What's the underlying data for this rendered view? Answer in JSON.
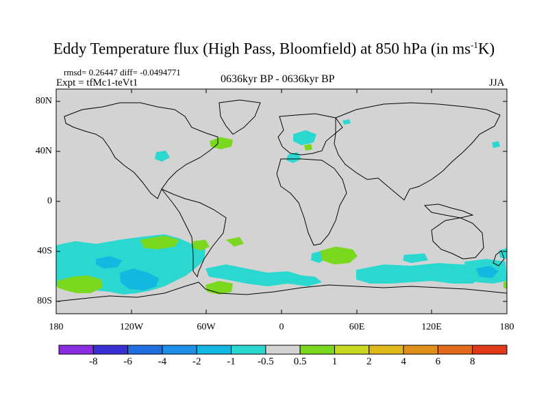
{
  "title": {
    "main": "Eddy Temperature flux (High Pass, Bloomfield) at 850 hPa (in ms",
    "sup": "-1",
    "end": "K)"
  },
  "stats": "rmsd= 0.26447 diff= -0.0494771",
  "experiment": "Expt = tfMc1-teVt1",
  "period": "0636kyr BP - 0636kyr BP",
  "season": "JJA",
  "lat_ticks": [
    "80N",
    "40N",
    "0",
    "40S",
    "80S"
  ],
  "lon_ticks": [
    "180",
    "120W",
    "60W",
    "0",
    "60E",
    "120E",
    "180"
  ],
  "colorbar": {
    "labels": [
      "-8",
      "-6",
      "-4",
      "-2",
      "-1",
      "-0.5",
      "0.5",
      "1",
      "2",
      "4",
      "6",
      "8"
    ],
    "colors": [
      "#8a2be2",
      "#3a2fd6",
      "#1f6fe0",
      "#1e90e8",
      "#12b8e0",
      "#2ad8d0",
      "#d3d3d3",
      "#7ad81e",
      "#c8d81e",
      "#e0b81a",
      "#e0901a",
      "#e06a1a",
      "#e03a1a"
    ]
  },
  "map_colors": {
    "background": "#d3d3d3",
    "negative_small": "#2ad8d0",
    "negative_medium": "#12b8e0",
    "positive_small": "#7ad81e",
    "coastline": "#000000"
  }
}
